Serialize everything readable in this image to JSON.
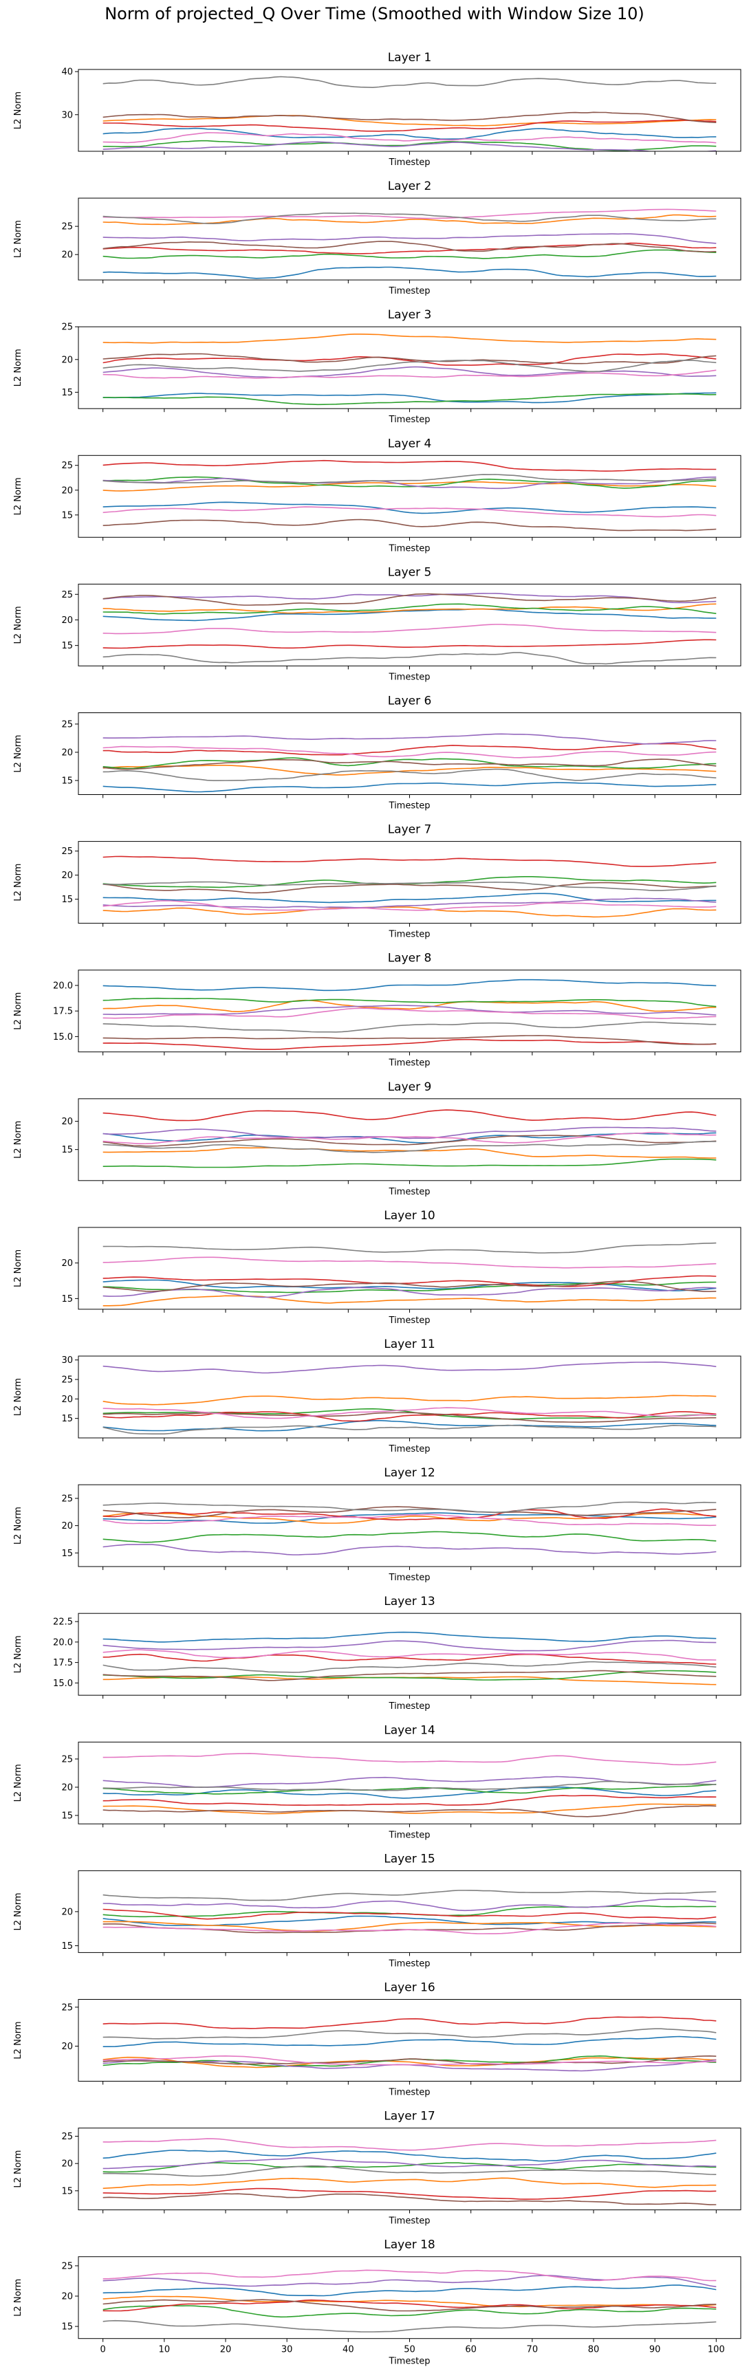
{
  "title": "Norm of projected_Q Over Time (Smoothed with Window Size 10)",
  "chart_data": {
    "type": "line",
    "xlabel": "Timestep",
    "ylabel": "L2 Norm",
    "xlim": [
      -4,
      104
    ],
    "xticks": [
      0,
      10,
      20,
      30,
      40,
      50,
      60,
      70,
      80,
      90,
      100
    ],
    "series_colors": [
      "#1f77b4",
      "#ff7f0e",
      "#2ca02c",
      "#d62728",
      "#9467bd",
      "#8c564b",
      "#e377c2",
      "#7f7f7f"
    ],
    "panels": [
      {
        "title": "Layer 1",
        "ylim": [
          21.5,
          40.5
        ],
        "yticks": [
          30,
          40
        ],
        "ytick_labels": [
          "30",
          "40"
        ],
        "series_levels": [
          25.5,
          28.5,
          23,
          27.5,
          22.5,
          29.5,
          24.5,
          37.5
        ]
      },
      {
        "title": "Layer 2",
        "ylim": [
          15.5,
          30
        ],
        "yticks": [
          20,
          25
        ],
        "ytick_labels": [
          "20",
          "25"
        ],
        "series_levels": [
          16.8,
          26,
          19.8,
          21,
          23,
          21.5,
          27,
          26.5
        ]
      },
      {
        "title": "Layer 3",
        "ylim": [
          12.5,
          25
        ],
        "yticks": [
          15,
          20,
          25
        ],
        "ytick_labels": [
          "15",
          "20",
          "25"
        ],
        "series_levels": [
          14.3,
          23,
          14,
          20,
          18,
          20,
          17.5,
          19
        ]
      },
      {
        "title": "Layer 4",
        "ylim": [
          10.5,
          27
        ],
        "yticks": [
          15,
          20,
          25
        ],
        "ytick_labels": [
          "15",
          "20",
          "25"
        ],
        "series_levels": [
          16.5,
          21,
          21.5,
          25,
          21.5,
          13,
          15.8,
          22
        ]
      },
      {
        "title": "Layer 5",
        "ylim": [
          11,
          27
        ],
        "yticks": [
          15,
          20,
          25
        ],
        "ytick_labels": [
          "15",
          "20",
          "25"
        ],
        "series_levels": [
          21,
          22,
          22,
          15,
          24.5,
          24,
          18,
          12.5
        ]
      },
      {
        "title": "Layer 6",
        "ylim": [
          12.5,
          27
        ],
        "yticks": [
          15,
          20,
          25
        ],
        "ytick_labels": [
          "15",
          "20",
          "25"
        ],
        "series_levels": [
          14,
          17,
          18,
          20.5,
          22.5,
          18,
          20,
          16
        ]
      },
      {
        "title": "Layer 7",
        "ylim": [
          10,
          27
        ],
        "yticks": [
          15,
          20,
          25
        ],
        "ytick_labels": [
          "15",
          "20",
          "25"
        ],
        "series_levels": [
          15,
          12.5,
          18.5,
          23,
          14,
          17.5,
          13.5,
          18
        ]
      },
      {
        "title": "Layer 8",
        "ylim": [
          13.5,
          21.5
        ],
        "yticks": [
          15,
          17.5,
          20
        ],
        "ytick_labels": [
          "15.0",
          "17.5",
          "20.0"
        ],
        "series_levels": [
          20,
          18,
          18.5,
          14.3,
          17.5,
          14.8,
          17.2,
          16
        ]
      },
      {
        "title": "Layer 9",
        "ylim": [
          9.5,
          24
        ],
        "yticks": [
          15,
          20
        ],
        "ytick_labels": [
          "15",
          "20"
        ],
        "series_levels": [
          17.2,
          14.5,
          12.3,
          21,
          18,
          16.5,
          17,
          15.5
        ]
      },
      {
        "title": "Layer 10",
        "ylim": [
          13.5,
          25
        ],
        "yticks": [
          15,
          20
        ],
        "ytick_labels": [
          "15",
          "20"
        ],
        "series_levels": [
          16.8,
          14.8,
          16.5,
          17.5,
          16,
          16.8,
          20,
          22
        ]
      },
      {
        "title": "Layer 11",
        "ylim": [
          10,
          31
        ],
        "yticks": [
          15,
          20,
          25,
          30
        ],
        "ytick_labels": [
          "15",
          "20",
          "25",
          "30"
        ],
        "series_levels": [
          13,
          20,
          16,
          15.8,
          28,
          15.5,
          16.5,
          12.5
        ]
      },
      {
        "title": "Layer 12",
        "ylim": [
          12.5,
          27.5
        ],
        "yticks": [
          15,
          20,
          25
        ],
        "ytick_labels": [
          "15",
          "20",
          "25"
        ],
        "series_levels": [
          21.5,
          21.5,
          18,
          22,
          15.5,
          22.5,
          21,
          23.5
        ]
      },
      {
        "title": "Layer 13",
        "ylim": [
          13.5,
          23.5
        ],
        "yticks": [
          15,
          17.5,
          20,
          22.5
        ],
        "ytick_labels": [
          "15.0",
          "17.5",
          "20.0",
          "22.5"
        ],
        "series_levels": [
          20.5,
          15.5,
          15.8,
          18,
          19.5,
          16,
          18.5,
          17
        ]
      },
      {
        "title": "Layer 14",
        "ylim": [
          13.5,
          28
        ],
        "yticks": [
          15,
          20,
          25
        ],
        "ytick_labels": [
          "15",
          "20",
          "25"
        ],
        "series_levels": [
          19,
          16,
          19.5,
          17.5,
          21,
          15.8,
          25,
          20
        ]
      },
      {
        "title": "Layer 15",
        "ylim": [
          14,
          26
        ],
        "yticks": [
          15,
          20
        ],
        "ytick_labels": [
          "15",
          "20"
        ],
        "series_levels": [
          18.5,
          18,
          20,
          19.5,
          21,
          17.5,
          17.5,
          22.5
        ]
      },
      {
        "title": "Layer 16",
        "ylim": [
          15.5,
          26
        ],
        "yticks": [
          20,
          25
        ],
        "ytick_labels": [
          "20",
          "25"
        ],
        "series_levels": [
          20.5,
          18,
          18,
          23,
          17.5,
          18,
          18,
          21.5
        ]
      },
      {
        "title": "Layer 17",
        "ylim": [
          11.5,
          26.5
        ],
        "yticks": [
          15,
          20,
          25
        ],
        "ytick_labels": [
          "15",
          "20",
          "25"
        ],
        "series_levels": [
          21.5,
          16.5,
          19.5,
          14.5,
          20,
          13.5,
          23.5,
          18.5
        ]
      },
      {
        "title": "Layer 18",
        "ylim": [
          13,
          26.5
        ],
        "yticks": [
          15,
          20,
          25
        ],
        "ytick_labels": [
          "15",
          "20",
          "25"
        ],
        "series_levels": [
          21,
          19,
          17.5,
          18.5,
          22.5,
          18.5,
          23.5,
          15
        ]
      }
    ]
  }
}
